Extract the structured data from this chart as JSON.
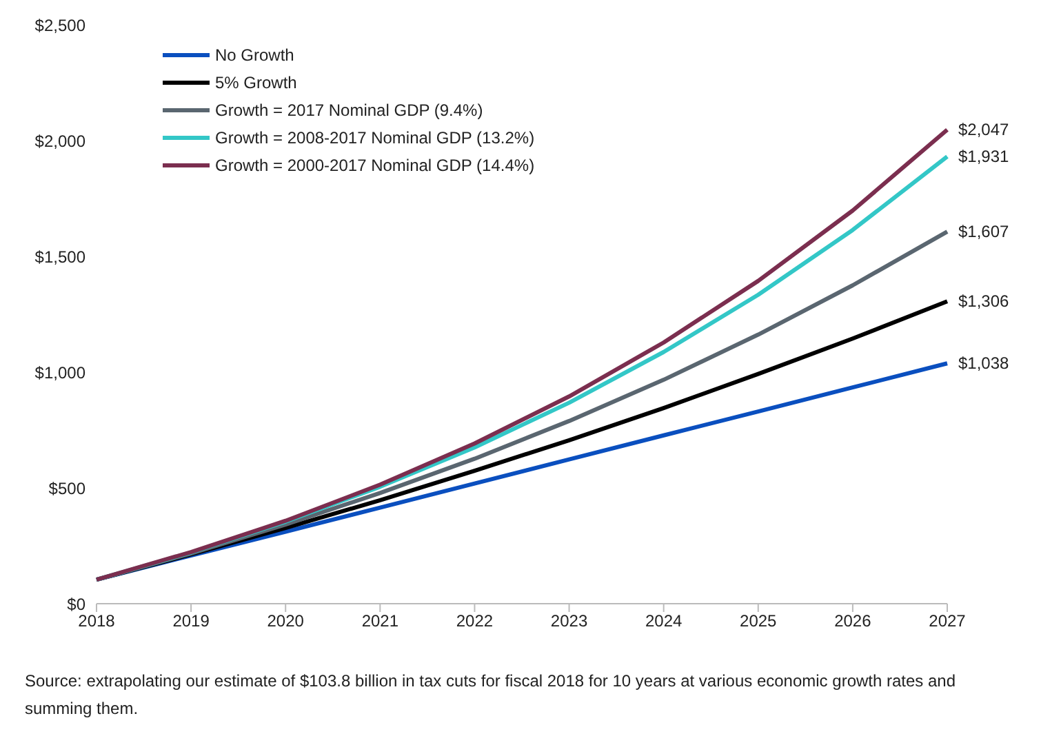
{
  "chart_data": {
    "type": "line",
    "categories": [
      "2018",
      "2019",
      "2020",
      "2021",
      "2022",
      "2023",
      "2024",
      "2025",
      "2026",
      "2027"
    ],
    "series": [
      {
        "name": "No Growth",
        "color": "#0a4fbf",
        "values": [
          104,
          208,
          311,
          415,
          519,
          623,
          727,
          830,
          934,
          1038
        ],
        "value_labels": [
          null,
          null,
          null,
          null,
          null,
          null,
          null,
          null,
          null,
          "$1,038"
        ]
      },
      {
        "name": "5% Growth",
        "color": "#000000",
        "values": [
          104,
          213,
          327,
          447,
          574,
          706,
          845,
          992,
          1145,
          1306
        ],
        "value_labels": [
          null,
          null,
          null,
          null,
          null,
          null,
          null,
          null,
          null,
          "$1,306"
        ]
      },
      {
        "name": "Growth = 2017 Nominal GDP (9.4%)",
        "color": "#5a6670",
        "values": [
          104,
          217,
          342,
          478,
          626,
          789,
          967,
          1162,
          1375,
          1607
        ],
        "value_labels": [
          null,
          null,
          null,
          null,
          null,
          null,
          null,
          null,
          null,
          "$1,607"
        ]
      },
      {
        "name": "Growth = 2008-2017 Nominal GDP (13.2%)",
        "color": "#33c7c7",
        "values": [
          104,
          221,
          354,
          505,
          675,
          868,
          1087,
          1334,
          1614,
          1931
        ],
        "value_labels": [
          null,
          null,
          null,
          null,
          null,
          null,
          null,
          null,
          null,
          "$1,931"
        ]
      },
      {
        "name": "Growth = 2000-2017 Nominal GDP (14.4%)",
        "color": "#7b2e4f",
        "values": [
          104,
          223,
          358,
          514,
          692,
          895,
          1128,
          1394,
          1698,
          2047
        ],
        "value_labels": [
          null,
          null,
          null,
          null,
          null,
          null,
          null,
          null,
          null,
          "$2,047"
        ]
      }
    ],
    "ylim": [
      0,
      2500
    ],
    "yticks": [
      {
        "value": 0,
        "label": "$0"
      },
      {
        "value": 500,
        "label": "$500"
      },
      {
        "value": 1000,
        "label": "$1,000"
      },
      {
        "value": 1500,
        "label": "$1,500"
      },
      {
        "value": 2000,
        "label": "$2,000"
      },
      {
        "value": 2500,
        "label": "$2,500"
      }
    ],
    "legend": "top left",
    "marker": "none",
    "line_style": "solid",
    "annotations": [
      "Source: extrapolating our estimate of $103.8 billion in tax cuts for fiscal 2018 for 10 years at various economic growth rates and summing them."
    ]
  }
}
